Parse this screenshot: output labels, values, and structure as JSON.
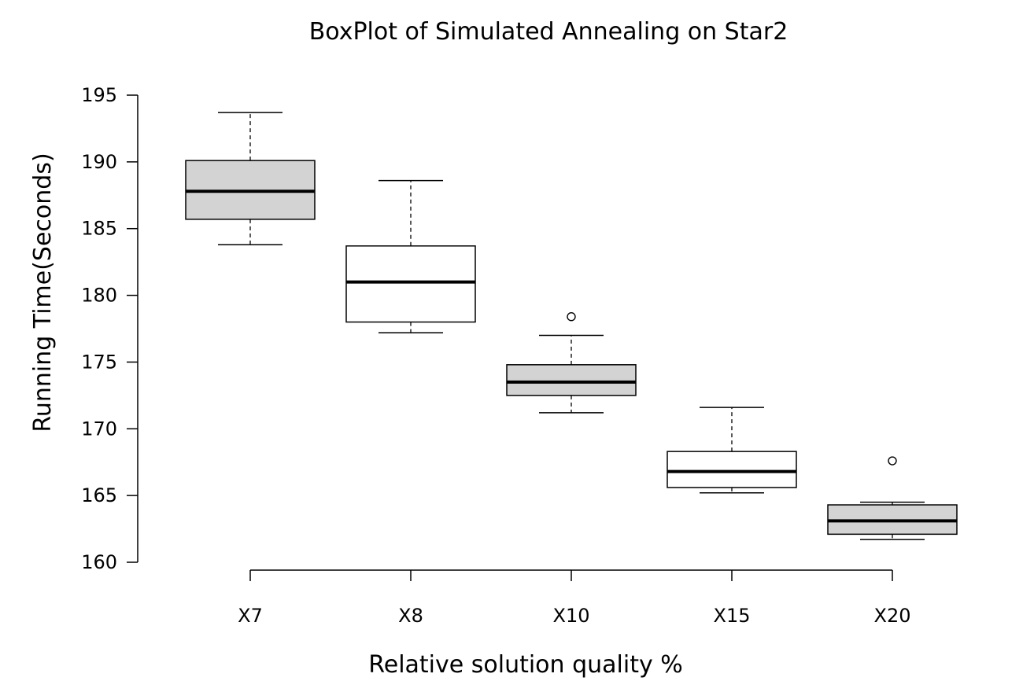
{
  "chart_data": {
    "type": "boxplot",
    "title": "BoxPlot of Simulated Annealing on Star2",
    "xlabel": "Relative solution quality %",
    "ylabel": "Running Time(Seconds)",
    "ylim": [
      160,
      195
    ],
    "yticks": [
      "160",
      "165",
      "170",
      "175",
      "180",
      "185",
      "190",
      "195"
    ],
    "grid": false,
    "categories": [
      "X7",
      "X8",
      "X10",
      "X15",
      "X20"
    ],
    "boxes": [
      {
        "category": "X7",
        "whisker_low": 183.8,
        "q1": 185.7,
        "median": 187.8,
        "q3": 190.1,
        "whisker_high": 193.7,
        "outliers": [],
        "fill": "#d3d3d3"
      },
      {
        "category": "X8",
        "whisker_low": 177.2,
        "q1": 178.0,
        "median": 181.0,
        "q3": 183.7,
        "whisker_high": 188.6,
        "outliers": [],
        "fill": "#ffffff"
      },
      {
        "category": "X10",
        "whisker_low": 171.2,
        "q1": 172.5,
        "median": 173.5,
        "q3": 174.8,
        "whisker_high": 177.0,
        "outliers": [
          178.4
        ],
        "fill": "#d3d3d3"
      },
      {
        "category": "X15",
        "whisker_low": 165.2,
        "q1": 165.6,
        "median": 166.8,
        "q3": 168.3,
        "whisker_high": 171.6,
        "outliers": [],
        "fill": "#ffffff"
      },
      {
        "category": "X20",
        "whisker_low": 161.7,
        "q1": 162.1,
        "median": 163.1,
        "q3": 164.3,
        "whisker_high": 164.5,
        "outliers": [
          167.6
        ],
        "fill": "#d3d3d3"
      }
    ]
  }
}
